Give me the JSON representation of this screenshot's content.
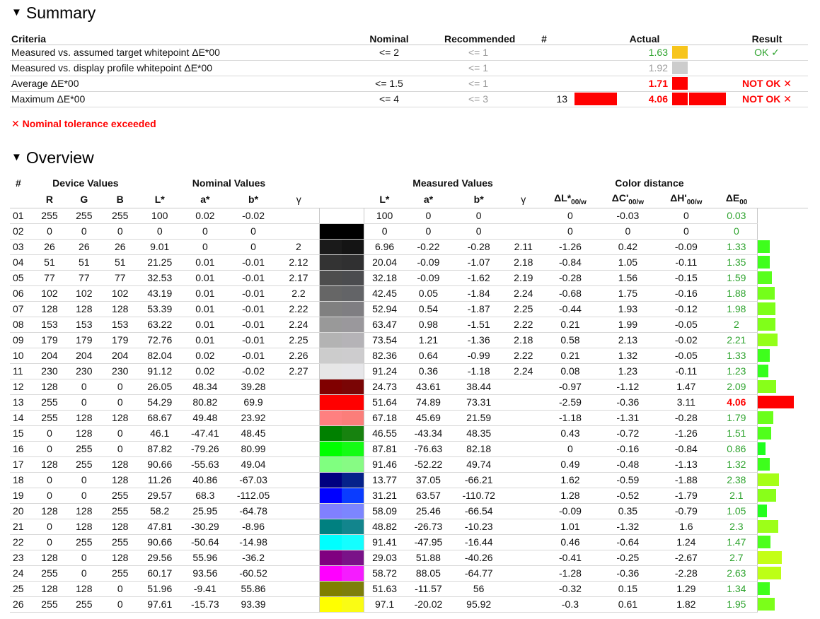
{
  "summary": {
    "title": "Summary",
    "headers": {
      "criteria": "Criteria",
      "nominal": "Nominal",
      "recommended": "Recommended",
      "count": "#",
      "actual": "Actual",
      "result": "Result"
    },
    "rows": [
      {
        "criteria": "Measured vs. assumed target whitepoint ΔE*00",
        "nominal": "<= 2",
        "recommended": "<= 1",
        "count": "",
        "count_bar_color": "",
        "actual": "1.63",
        "actual_style": "green",
        "actual_swatch": "#f7c51c",
        "result_bar_color": "",
        "result": "OK ✓",
        "result_style": "green"
      },
      {
        "criteria": "Measured vs. display profile whitepoint ΔE*00",
        "nominal": "",
        "recommended": "<= 1",
        "count": "",
        "count_bar_color": "",
        "actual": "1.92",
        "actual_style": "grey",
        "actual_swatch": "#cccccc",
        "result_bar_color": "",
        "result": "",
        "result_style": ""
      },
      {
        "criteria": "Average ΔE*00",
        "nominal": "<= 1.5",
        "recommended": "<= 1",
        "count": "",
        "count_bar_color": "",
        "actual": "1.71",
        "actual_style": "red",
        "actual_swatch": "#ff0000",
        "result_bar_color": "",
        "result": "NOT OK ✕",
        "result_style": "red"
      },
      {
        "criteria": "Maximum ΔE*00",
        "nominal": "<= 4",
        "recommended": "<= 3",
        "count": "13",
        "count_bar_color": "#ff0000",
        "actual": "4.06",
        "actual_style": "red",
        "actual_swatch": "#ff0000",
        "result_bar_color": "#ff0000",
        "result": "NOT OK ✕",
        "result_style": "red"
      }
    ]
  },
  "warning": "✕ Nominal tolerance exceeded",
  "overview": {
    "title": "Overview",
    "group_headers": {
      "index": "#",
      "device": "Device Values",
      "nominal": "Nominal Values",
      "measured": "Measured Values",
      "distance": "Color distance"
    },
    "column_headers": {
      "r": "R",
      "g": "G",
      "b": "B",
      "nl": "L*",
      "na": "a*",
      "nb": "b*",
      "ng": "γ",
      "ml": "L*",
      "ma": "a*",
      "mb": "b*",
      "mg": "γ",
      "dl": "ΔL*",
      "dc": "ΔC'",
      "dh": "ΔH'",
      "sub": "00/w",
      "de": "ΔE",
      "de_sub": "00"
    },
    "rows": [
      {
        "i": "01",
        "r": "255",
        "g": "255",
        "b": "255",
        "nl": "100",
        "na": "0.02",
        "nb": "-0.02",
        "ng": "",
        "ml": "100",
        "ma": "0",
        "mb": "0",
        "mg": "",
        "dl": "0",
        "dc": "-0.03",
        "dh": "0",
        "de": "0.03",
        "de_red": false,
        "c1": "#ffffff",
        "c2": "#ffffff"
      },
      {
        "i": "02",
        "r": "0",
        "g": "0",
        "b": "0",
        "nl": "0",
        "na": "0",
        "nb": "0",
        "ng": "",
        "ml": "0",
        "ma": "0",
        "mb": "0",
        "mg": "",
        "dl": "0",
        "dc": "0",
        "dh": "0",
        "de": "0",
        "de_red": false,
        "c1": "#000000",
        "c2": "#000000"
      },
      {
        "i": "03",
        "r": "26",
        "g": "26",
        "b": "26",
        "nl": "9.01",
        "na": "0",
        "nb": "0",
        "ng": "2",
        "ml": "6.96",
        "ma": "-0.22",
        "mb": "-0.28",
        "mg": "2.11",
        "dl": "-1.26",
        "dc": "0.42",
        "dh": "-0.09",
        "de": "1.33",
        "de_red": false,
        "c1": "#1a1a1a",
        "c2": "#141414"
      },
      {
        "i": "04",
        "r": "51",
        "g": "51",
        "b": "51",
        "nl": "21.25",
        "na": "0.01",
        "nb": "-0.01",
        "ng": "2.12",
        "ml": "20.04",
        "ma": "-0.09",
        "mb": "-1.07",
        "mg": "2.18",
        "dl": "-0.84",
        "dc": "1.05",
        "dh": "-0.11",
        "de": "1.35",
        "de_red": false,
        "c1": "#333333",
        "c2": "#303031"
      },
      {
        "i": "05",
        "r": "77",
        "g": "77",
        "b": "77",
        "nl": "32.53",
        "na": "0.01",
        "nb": "-0.01",
        "ng": "2.17",
        "ml": "32.18",
        "ma": "-0.09",
        "mb": "-1.62",
        "mg": "2.19",
        "dl": "-0.28",
        "dc": "1.56",
        "dh": "-0.15",
        "de": "1.59",
        "de_red": false,
        "c1": "#4d4d4d",
        "c2": "#4b4c4f"
      },
      {
        "i": "06",
        "r": "102",
        "g": "102",
        "b": "102",
        "nl": "43.19",
        "na": "0.01",
        "nb": "-0.01",
        "ng": "2.2",
        "ml": "42.45",
        "ma": "0.05",
        "mb": "-1.84",
        "mg": "2.24",
        "dl": "-0.68",
        "dc": "1.75",
        "dh": "-0.16",
        "de": "1.88",
        "de_red": false,
        "c1": "#666666",
        "c2": "#636467"
      },
      {
        "i": "07",
        "r": "128",
        "g": "128",
        "b": "128",
        "nl": "53.39",
        "na": "0.01",
        "nb": "-0.01",
        "ng": "2.22",
        "ml": "52.94",
        "ma": "0.54",
        "mb": "-1.87",
        "mg": "2.25",
        "dl": "-0.44",
        "dc": "1.93",
        "dh": "-0.12",
        "de": "1.98",
        "de_red": false,
        "c1": "#808080",
        "c2": "#7f7e82"
      },
      {
        "i": "08",
        "r": "153",
        "g": "153",
        "b": "153",
        "nl": "63.22",
        "na": "0.01",
        "nb": "-0.01",
        "ng": "2.24",
        "ml": "63.47",
        "ma": "0.98",
        "mb": "-1.51",
        "mg": "2.22",
        "dl": "0.21",
        "dc": "1.99",
        "dh": "-0.05",
        "de": "2",
        "de_red": false,
        "c1": "#999999",
        "c2": "#9a989c"
      },
      {
        "i": "09",
        "r": "179",
        "g": "179",
        "b": "179",
        "nl": "72.76",
        "na": "0.01",
        "nb": "-0.01",
        "ng": "2.25",
        "ml": "73.54",
        "ma": "1.21",
        "mb": "-1.36",
        "mg": "2.18",
        "dl": "0.58",
        "dc": "2.13",
        "dh": "-0.02",
        "de": "2.21",
        "de_red": false,
        "c1": "#b3b3b3",
        "c2": "#b5b3b7"
      },
      {
        "i": "10",
        "r": "204",
        "g": "204",
        "b": "204",
        "nl": "82.04",
        "na": "0.02",
        "nb": "-0.01",
        "ng": "2.26",
        "ml": "82.36",
        "ma": "0.64",
        "mb": "-0.99",
        "mg": "2.22",
        "dl": "0.21",
        "dc": "1.32",
        "dh": "-0.05",
        "de": "1.33",
        "de_red": false,
        "c1": "#cccccc",
        "c2": "#cdccce"
      },
      {
        "i": "11",
        "r": "230",
        "g": "230",
        "b": "230",
        "nl": "91.12",
        "na": "0.02",
        "nb": "-0.02",
        "ng": "2.27",
        "ml": "91.24",
        "ma": "0.36",
        "mb": "-1.18",
        "mg": "2.24",
        "dl": "0.08",
        "dc": "1.23",
        "dh": "-0.11",
        "de": "1.23",
        "de_red": false,
        "c1": "#e6e6e6",
        "c2": "#e6e6e9"
      },
      {
        "i": "12",
        "r": "128",
        "g": "0",
        "b": "0",
        "nl": "26.05",
        "na": "48.34",
        "nb": "39.28",
        "ng": "",
        "ml": "24.73",
        "ma": "43.61",
        "mb": "38.44",
        "mg": "",
        "dl": "-0.97",
        "dc": "-1.12",
        "dh": "1.47",
        "de": "2.09",
        "de_red": false,
        "c1": "#800000",
        "c2": "#7a0505"
      },
      {
        "i": "13",
        "r": "255",
        "g": "0",
        "b": "0",
        "nl": "54.29",
        "na": "80.82",
        "nb": "69.9",
        "ng": "",
        "ml": "51.64",
        "ma": "74.89",
        "mb": "73.31",
        "mg": "",
        "dl": "-2.59",
        "dc": "-0.36",
        "dh": "3.11",
        "de": "4.06",
        "de_red": true,
        "c1": "#ff0000",
        "c2": "#ff0000"
      },
      {
        "i": "14",
        "r": "255",
        "g": "128",
        "b": "128",
        "nl": "68.67",
        "na": "49.48",
        "nb": "23.92",
        "ng": "",
        "ml": "67.18",
        "ma": "45.69",
        "mb": "21.59",
        "mg": "",
        "dl": "-1.18",
        "dc": "-1.31",
        "dh": "-0.28",
        "de": "1.79",
        "de_red": false,
        "c1": "#ff8080",
        "c2": "#fb7e7a"
      },
      {
        "i": "15",
        "r": "0",
        "g": "128",
        "b": "0",
        "nl": "46.1",
        "na": "-47.41",
        "nb": "48.45",
        "ng": "",
        "ml": "46.55",
        "ma": "-43.34",
        "mb": "48.35",
        "mg": "",
        "dl": "0.43",
        "dc": "-0.72",
        "dh": "-1.26",
        "de": "1.51",
        "de_red": false,
        "c1": "#008000",
        "c2": "#17820f"
      },
      {
        "i": "16",
        "r": "0",
        "g": "255",
        "b": "0",
        "nl": "87.82",
        "na": "-79.26",
        "nb": "80.99",
        "ng": "",
        "ml": "87.81",
        "ma": "-76.63",
        "mb": "82.18",
        "mg": "",
        "dl": "0",
        "dc": "-0.16",
        "dh": "-0.84",
        "de": "0.86",
        "de_red": false,
        "c1": "#00ff00",
        "c2": "#14fc14"
      },
      {
        "i": "17",
        "r": "128",
        "g": "255",
        "b": "128",
        "nl": "90.66",
        "na": "-55.63",
        "nb": "49.04",
        "ng": "",
        "ml": "91.46",
        "ma": "-52.22",
        "mb": "49.74",
        "mg": "",
        "dl": "0.49",
        "dc": "-0.48",
        "dh": "-1.13",
        "de": "1.32",
        "de_red": false,
        "c1": "#80ff80",
        "c2": "#87fb84"
      },
      {
        "i": "18",
        "r": "0",
        "g": "0",
        "b": "128",
        "nl": "11.26",
        "na": "40.86",
        "nb": "-67.03",
        "ng": "",
        "ml": "13.77",
        "ma": "37.05",
        "mb": "-66.21",
        "mg": "",
        "dl": "1.62",
        "dc": "-0.59",
        "dh": "-1.88",
        "de": "2.38",
        "de_red": false,
        "c1": "#000080",
        "c2": "#06228a"
      },
      {
        "i": "19",
        "r": "0",
        "g": "0",
        "b": "255",
        "nl": "29.57",
        "na": "68.3",
        "nb": "-112.05",
        "ng": "",
        "ml": "31.21",
        "ma": "63.57",
        "mb": "-110.72",
        "mg": "",
        "dl": "1.28",
        "dc": "-0.52",
        "dh": "-1.79",
        "de": "2.1",
        "de_red": false,
        "c1": "#0000ff",
        "c2": "#0a3cff"
      },
      {
        "i": "20",
        "r": "128",
        "g": "128",
        "b": "255",
        "nl": "58.2",
        "na": "25.95",
        "nb": "-64.78",
        "ng": "",
        "ml": "58.09",
        "ma": "25.46",
        "mb": "-66.54",
        "mg": "",
        "dl": "-0.09",
        "dc": "0.35",
        "dh": "-0.79",
        "de": "1.05",
        "de_red": false,
        "c1": "#8080ff",
        "c2": "#7c86ff"
      },
      {
        "i": "21",
        "r": "0",
        "g": "128",
        "b": "128",
        "nl": "47.81",
        "na": "-30.29",
        "nb": "-8.96",
        "ng": "",
        "ml": "48.82",
        "ma": "-26.73",
        "mb": "-10.23",
        "mg": "",
        "dl": "1.01",
        "dc": "-1.32",
        "dh": "1.6",
        "de": "2.3",
        "de_red": false,
        "c1": "#008080",
        "c2": "#12858d"
      },
      {
        "i": "22",
        "r": "0",
        "g": "255",
        "b": "255",
        "nl": "90.66",
        "na": "-50.64",
        "nb": "-14.98",
        "ng": "",
        "ml": "91.41",
        "ma": "-47.95",
        "mb": "-16.44",
        "mg": "",
        "dl": "0.46",
        "dc": "-0.64",
        "dh": "1.24",
        "de": "1.47",
        "de_red": false,
        "c1": "#00ffff",
        "c2": "#14feff"
      },
      {
        "i": "23",
        "r": "128",
        "g": "0",
        "b": "128",
        "nl": "29.56",
        "na": "55.96",
        "nb": "-36.2",
        "ng": "",
        "ml": "29.03",
        "ma": "51.88",
        "mb": "-40.26",
        "mg": "",
        "dl": "-0.41",
        "dc": "-0.25",
        "dh": "-2.67",
        "de": "2.7",
        "de_red": false,
        "c1": "#800080",
        "c2": "#7a1288"
      },
      {
        "i": "24",
        "r": "255",
        "g": "0",
        "b": "255",
        "nl": "60.17",
        "na": "93.56",
        "nb": "-60.52",
        "ng": "",
        "ml": "58.72",
        "ma": "88.05",
        "mb": "-64.77",
        "mg": "",
        "dl": "-1.28",
        "dc": "-0.36",
        "dh": "-2.28",
        "de": "2.63",
        "de_red": false,
        "c1": "#ff00ff",
        "c2": "#f51cff"
      },
      {
        "i": "25",
        "r": "128",
        "g": "128",
        "b": "0",
        "nl": "51.96",
        "na": "-9.41",
        "nb": "55.86",
        "ng": "",
        "ml": "51.63",
        "ma": "-11.57",
        "mb": "56",
        "mg": "",
        "dl": "-0.32",
        "dc": "0.15",
        "dh": "1.29",
        "de": "1.34",
        "de_red": false,
        "c1": "#808000",
        "c2": "#7d7f0c"
      },
      {
        "i": "26",
        "r": "255",
        "g": "255",
        "b": "0",
        "nl": "97.61",
        "na": "-15.73",
        "nb": "93.39",
        "ng": "",
        "ml": "97.1",
        "ma": "-20.02",
        "mb": "95.92",
        "mg": "",
        "dl": "-0.3",
        "dc": "0.61",
        "dh": "1.82",
        "de": "1.95",
        "de_red": false,
        "c1": "#ffff00",
        "c2": "#fafc14"
      }
    ]
  }
}
